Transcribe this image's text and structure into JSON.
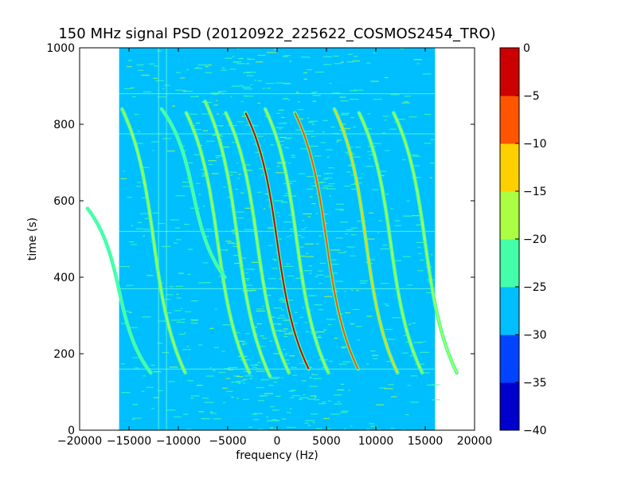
{
  "chart_data": {
    "type": "heatmap",
    "title": "150 MHz signal PSD (20120922_225622_COSMOS2454_TRO)",
    "xlabel": "frequency (Hz)",
    "ylabel": "time (s)",
    "xlim": [
      -20000,
      20000
    ],
    "ylim": [
      0,
      1000
    ],
    "x_ticks": [
      -20000,
      -15000,
      -10000,
      -5000,
      0,
      5000,
      10000,
      15000,
      20000
    ],
    "x_tick_labels": [
      "−20000",
      "−15000",
      "−10000",
      "−5000",
      "0",
      "5000",
      "10000",
      "15000",
      "20000"
    ],
    "y_ticks": [
      0,
      200,
      400,
      600,
      800,
      1000
    ],
    "y_tick_labels": [
      "0",
      "200",
      "400",
      "600",
      "800",
      "1000"
    ],
    "data_extent": {
      "freq": [
        -16000,
        16000
      ],
      "time": [
        0,
        1000
      ]
    },
    "background_level_db": -28,
    "colorbar": {
      "levels": [
        -40,
        -35,
        -30,
        -25,
        -20,
        -15,
        -10,
        -5,
        0
      ],
      "tick_labels": [
        "−40",
        "−35",
        "−30",
        "−25",
        "−20",
        "−15",
        "−10",
        "−5",
        "0"
      ],
      "colors": [
        "#0000cd",
        "#0044ff",
        "#00bfff",
        "#44ffaa",
        "#aaff44",
        "#ffd000",
        "#ff5500",
        "#cc0000"
      ]
    },
    "doppler_traces": [
      {
        "t_start": 160,
        "t_end": 830,
        "f_center": 0,
        "amplitude": 3200,
        "level_db": -5
      },
      {
        "t_start": 160,
        "t_end": 830,
        "f_center": 5000,
        "amplitude": 3200,
        "level_db": -8
      },
      {
        "t_start": 150,
        "t_end": 830,
        "f_center": -2000,
        "amplitude": 3200,
        "level_db": -17
      },
      {
        "t_start": 150,
        "t_end": 840,
        "f_center": 2000,
        "amplitude": 3200,
        "level_db": -17
      },
      {
        "t_start": 140,
        "t_end": 860,
        "f_center": -4000,
        "amplitude": 3300,
        "level_db": -18
      },
      {
        "t_start": 150,
        "t_end": 840,
        "f_center": 9000,
        "amplitude": 3200,
        "level_db": -15
      },
      {
        "t_start": 150,
        "t_end": 830,
        "f_center": -6000,
        "amplitude": 3200,
        "level_db": -20
      },
      {
        "t_start": 150,
        "t_end": 830,
        "f_center": 11500,
        "amplitude": 3200,
        "level_db": -20
      },
      {
        "t_start": 150,
        "t_end": 830,
        "f_center": 15000,
        "amplitude": 3200,
        "level_db": -18
      },
      {
        "t_start": 150,
        "t_end": 840,
        "f_center": -12500,
        "amplitude": 3200,
        "level_db": -20
      },
      {
        "t_start": 400,
        "t_end": 840,
        "f_center": -8500,
        "amplitude": 3200,
        "level_db": -22
      },
      {
        "t_start": 150,
        "t_end": 580,
        "f_center": -16000,
        "amplitude": 3200,
        "level_db": -22
      }
    ],
    "horizontal_streaks_time_s": [
      160,
      370,
      520,
      775,
      880
    ],
    "vertical_streaks_freq_hz": [
      -12000,
      -11200
    ]
  }
}
